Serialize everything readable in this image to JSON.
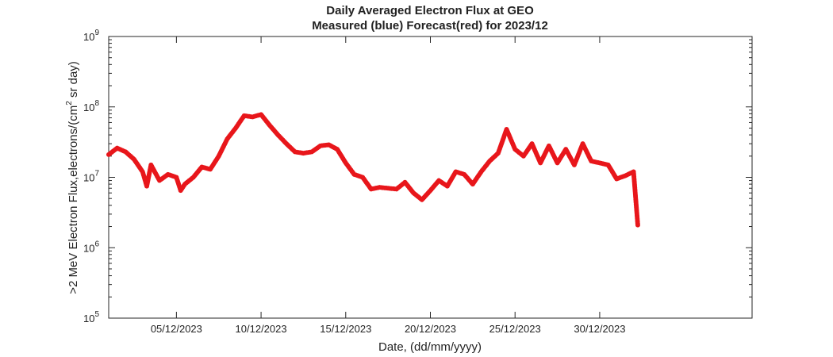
{
  "chart_data": {
    "type": "scatter",
    "title": "Daily Averaged Electron Flux at GEO",
    "subtitle": "Measured (blue) Forecast(red) for 2023/12",
    "xlabel": "Date, (dd/mm/yyyy)",
    "ylabel": ">2 MeV Electron Flux,electrons/(cm² sr day)",
    "ylabel_parts": [
      ">2 MeV Electron Flux,electrons/(cm",
      "2",
      " sr day)"
    ],
    "xscale": "date",
    "yscale": "log",
    "xlim": [
      "2023-12-01 00:00",
      "2024-01-08 00:00"
    ],
    "ylim": [
      100000,
      1000000000
    ],
    "xticks": [
      "05/12/2023",
      "10/12/2023",
      "15/12/2023",
      "20/12/2023",
      "25/12/2023",
      "30/12/2023"
    ],
    "xtick_dates": [
      "2023-12-05",
      "2023-12-10",
      "2023-12-15",
      "2023-12-20",
      "2023-12-25",
      "2023-12-30"
    ],
    "yticks": [
      {
        "value": 100000,
        "base": "10",
        "exp": "5"
      },
      {
        "value": 1000000,
        "base": "10",
        "exp": "6"
      },
      {
        "value": 10000000,
        "base": "10",
        "exp": "7"
      },
      {
        "value": 100000000,
        "base": "10",
        "exp": "8"
      },
      {
        "value": 1000000000,
        "base": "10",
        "exp": "9"
      }
    ],
    "grid": false,
    "legend": "none",
    "series": [
      {
        "color": "#e8161b",
        "x": [
          "2023-12-01 00:00",
          "2023-12-01 12:00",
          "2023-12-02 00:00",
          "2023-12-02 12:00",
          "2023-12-03 00:00",
          "2023-12-03 06:00",
          "2023-12-03 12:00",
          "2023-12-04 00:00",
          "2023-12-04 12:00",
          "2023-12-05 00:00",
          "2023-12-05 06:00",
          "2023-12-05 12:00",
          "2023-12-06 00:00",
          "2023-12-06 12:00",
          "2023-12-07 00:00",
          "2023-12-07 12:00",
          "2023-12-08 00:00",
          "2023-12-08 12:00",
          "2023-12-09 00:00",
          "2023-12-09 12:00",
          "2023-12-10 00:00",
          "2023-12-10 12:00",
          "2023-12-11 00:00",
          "2023-12-11 12:00",
          "2023-12-12 00:00",
          "2023-12-12 12:00",
          "2023-12-13 00:00",
          "2023-12-13 12:00",
          "2023-12-14 00:00",
          "2023-12-14 12:00",
          "2023-12-15 00:00",
          "2023-12-15 12:00",
          "2023-12-16 00:00",
          "2023-12-16 12:00",
          "2023-12-17 00:00",
          "2023-12-17 12:00",
          "2023-12-18 00:00",
          "2023-12-18 12:00",
          "2023-12-19 00:00",
          "2023-12-19 12:00",
          "2023-12-20 00:00",
          "2023-12-20 12:00",
          "2023-12-21 00:00",
          "2023-12-21 12:00",
          "2023-12-22 00:00",
          "2023-12-22 12:00",
          "2023-12-23 00:00",
          "2023-12-23 12:00",
          "2023-12-24 00:00",
          "2023-12-24 12:00",
          "2023-12-25 00:00",
          "2023-12-25 12:00",
          "2023-12-26 00:00",
          "2023-12-26 12:00",
          "2023-12-27 00:00",
          "2023-12-27 12:00",
          "2023-12-28 00:00",
          "2023-12-28 12:00",
          "2023-12-29 00:00",
          "2023-12-29 12:00",
          "2023-12-30 00:00",
          "2023-12-30 12:00",
          "2023-12-31 00:00",
          "2023-12-31 12:00",
          "2024-01-01 00:00",
          "2024-01-01 06:00"
        ],
        "y": [
          21000000,
          26000000,
          23000000,
          18000000,
          12000000,
          7500000,
          15000000,
          9000000,
          11000000,
          10000000,
          6500000,
          8000000,
          10000000,
          14000000,
          13000000,
          20000000,
          35000000,
          50000000,
          75000000,
          72000000,
          78000000,
          55000000,
          40000000,
          30000000,
          23000000,
          22000000,
          23000000,
          28000000,
          29000000,
          25000000,
          16000000,
          11000000,
          10000000,
          6800000,
          7200000,
          7000000,
          6800000,
          8500000,
          6000000,
          4800000,
          6500000,
          9000000,
          7500000,
          12000000,
          11000000,
          8000000,
          12000000,
          17000000,
          22000000,
          48000000,
          25000000,
          20000000,
          30000000,
          16000000,
          28000000,
          16000000,
          25000000,
          15000000,
          30000000,
          17000000,
          16000000,
          15000000,
          9500000,
          10500000,
          12000000,
          2100000
        ]
      }
    ]
  }
}
